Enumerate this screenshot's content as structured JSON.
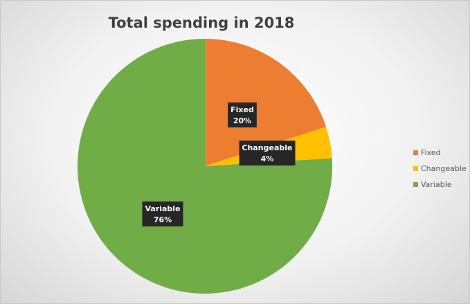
{
  "chart_data": {
    "type": "pie",
    "title": "Total spending in 2018",
    "categories": [
      "Fixed",
      "Changeable",
      "Variable"
    ],
    "values": [
      20,
      4,
      76
    ],
    "value_labels": [
      "20%",
      "4%",
      "76%"
    ],
    "colors": [
      "#ED7D31",
      "#FFC000",
      "#70AD47"
    ],
    "legend": "right"
  }
}
